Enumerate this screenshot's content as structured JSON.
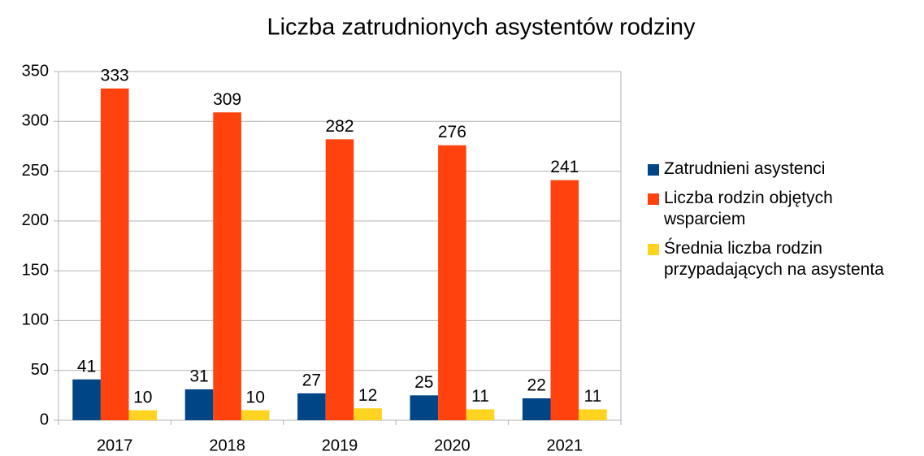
{
  "chart_data": {
    "type": "bar",
    "title": "Liczba zatrudnionych asystentów rodziny",
    "categories": [
      "2017",
      "2018",
      "2019",
      "2020",
      "2021"
    ],
    "series": [
      {
        "name": "Zatrudnieni asystenci",
        "color": "#004586",
        "values": [
          41,
          31,
          27,
          25,
          22
        ]
      },
      {
        "name": "Liczba rodzin objętych wsparciem",
        "color": "#ff420e",
        "values": [
          333,
          309,
          282,
          276,
          241
        ]
      },
      {
        "name": "Średnia liczba rodzin przypadających na asystenta",
        "color": "#ffd320",
        "values": [
          10,
          10,
          12,
          11,
          11
        ]
      }
    ],
    "ylim": [
      0,
      350
    ],
    "yticks": [
      0,
      50,
      100,
      150,
      200,
      250,
      300,
      350
    ],
    "grid": true,
    "legend": "right"
  }
}
